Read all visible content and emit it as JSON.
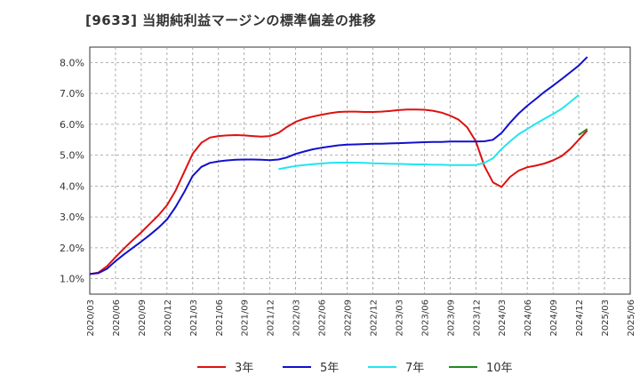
{
  "chart_data": {
    "type": "line",
    "title": "[9633]  当期純利益マージンの標準偏差の推移",
    "ylim": [
      0.5,
      8.5
    ],
    "yticks": [
      1.0,
      2.0,
      3.0,
      4.0,
      5.0,
      6.0,
      7.0,
      8.0
    ],
    "ytick_labels": [
      "1.0%",
      "2.0%",
      "3.0%",
      "4.0%",
      "5.0%",
      "6.0%",
      "7.0%",
      "8.0%"
    ],
    "x_tick_labels": [
      "2020/03",
      "2020/06",
      "2020/09",
      "2020/12",
      "2021/03",
      "2021/06",
      "2021/09",
      "2021/12",
      "2022/03",
      "2022/06",
      "2022/09",
      "2022/12",
      "2023/03",
      "2023/06",
      "2023/09",
      "2023/12",
      "2024/03",
      "2024/06",
      "2024/09",
      "2024/12",
      "2025/03",
      "2025/06"
    ],
    "grid": true,
    "legend_position": "bottom",
    "series": [
      {
        "name": "3年",
        "color": "#dd1111",
        "values": [
          1.15,
          1.2,
          1.4,
          1.7,
          1.98,
          2.25,
          2.5,
          2.78,
          3.05,
          3.38,
          3.85,
          4.45,
          5.05,
          5.4,
          5.57,
          5.62,
          5.64,
          5.65,
          5.64,
          5.62,
          5.6,
          5.62,
          5.72,
          5.92,
          6.08,
          6.18,
          6.25,
          6.31,
          6.36,
          6.4,
          6.41,
          6.41,
          6.4,
          6.4,
          6.41,
          6.43,
          6.46,
          6.48,
          6.48,
          6.47,
          6.44,
          6.38,
          6.28,
          6.15,
          5.9,
          5.45,
          4.65,
          4.12,
          3.97,
          4.3,
          4.5,
          4.61,
          4.66,
          4.73,
          4.83,
          4.97,
          5.2,
          5.5,
          5.8
        ]
      },
      {
        "name": "5年",
        "color": "#1111cc",
        "values": [
          1.15,
          1.18,
          1.32,
          1.57,
          1.79,
          2.0,
          2.2,
          2.42,
          2.65,
          2.92,
          3.32,
          3.8,
          4.33,
          4.62,
          4.75,
          4.8,
          4.83,
          4.85,
          4.86,
          4.86,
          4.85,
          4.84,
          4.86,
          4.93,
          5.04,
          5.12,
          5.19,
          5.24,
          5.28,
          5.32,
          5.34,
          5.35,
          5.36,
          5.37,
          5.37,
          5.38,
          5.39,
          5.4,
          5.41,
          5.42,
          5.43,
          5.43,
          5.44,
          5.44,
          5.44,
          5.44,
          5.45,
          5.5,
          5.72,
          6.05,
          6.35,
          6.6,
          6.82,
          7.05,
          7.25,
          7.46,
          7.68,
          7.9,
          8.18
        ]
      },
      {
        "name": "7年",
        "color": "#22e5ee",
        "start_index": 22,
        "values": [
          4.55,
          4.6,
          4.65,
          4.68,
          4.71,
          4.73,
          4.75,
          4.76,
          4.76,
          4.76,
          4.75,
          4.74,
          4.73,
          4.72,
          4.72,
          4.71,
          4.7,
          4.7,
          4.69,
          4.69,
          4.68,
          4.68,
          4.68,
          4.68,
          4.75,
          4.9,
          5.2,
          5.45,
          5.68,
          5.85,
          6.02,
          6.18,
          6.33,
          6.5,
          6.72,
          6.95
        ]
      },
      {
        "name": "10年",
        "color": "#228822",
        "start_index": 57,
        "values": [
          5.65,
          5.85
        ]
      }
    ]
  }
}
